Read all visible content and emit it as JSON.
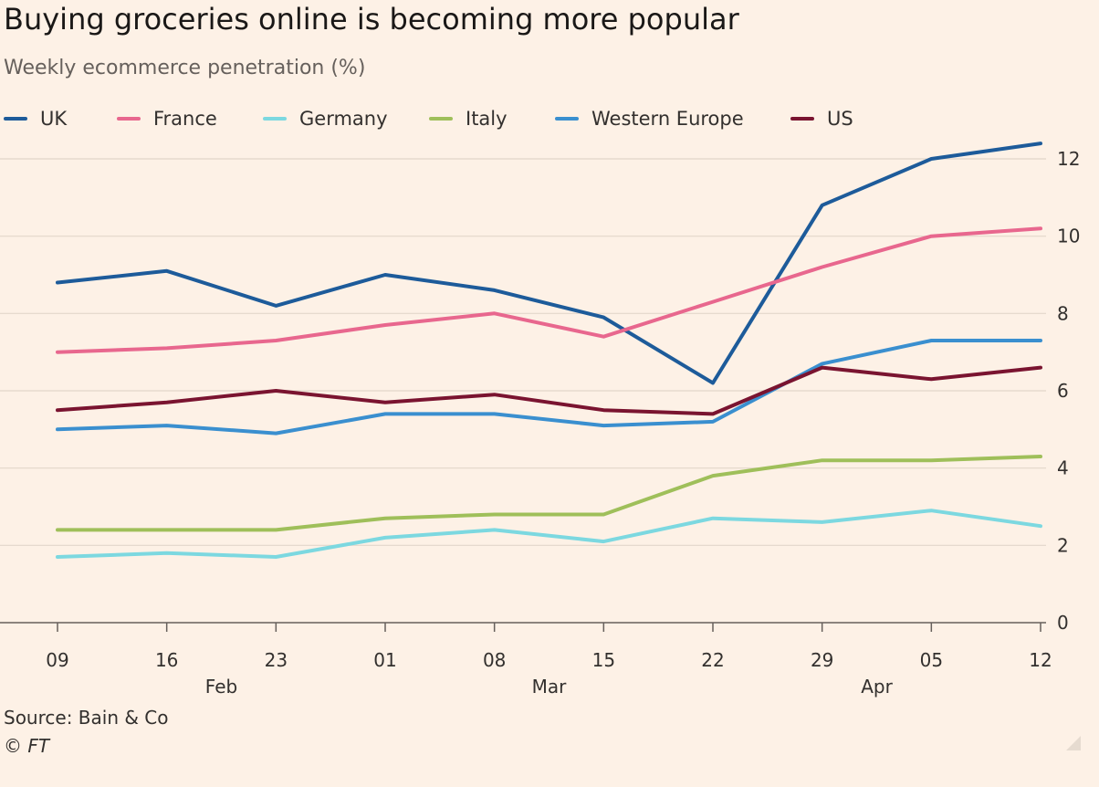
{
  "header": {
    "title": "Buying groceries online is becoming more popular",
    "subtitle": "Weekly ecommerce penetration (%)"
  },
  "footer": {
    "source": "Source: Bain & Co",
    "copyright": "© FT"
  },
  "chart_data": {
    "type": "line",
    "title": "Buying groceries online is becoming more popular",
    "subtitle": "Weekly ecommerce penetration (%)",
    "x": [
      "09",
      "16",
      "23",
      "01",
      "08",
      "15",
      "22",
      "29",
      "05",
      "12"
    ],
    "month_labels": [
      {
        "label": "Feb",
        "after_index": 1
      },
      {
        "label": "Mar",
        "after_index": 4
      },
      {
        "label": "Apr",
        "after_index": 7
      }
    ],
    "y_ticks": [
      "0",
      "2",
      "4",
      "6",
      "8",
      "10",
      "12"
    ],
    "ylim": [
      0,
      12
    ],
    "y_axis_side": "right",
    "grid": true,
    "legend_position": "top",
    "series": [
      {
        "name": "UK",
        "color": "#1d5b9a",
        "values": [
          8.8,
          9.1,
          8.2,
          9.0,
          8.6,
          7.9,
          6.2,
          10.8,
          12.0,
          12.4
        ]
      },
      {
        "name": "France",
        "color": "#e8678e",
        "values": [
          7.0,
          7.1,
          7.3,
          7.7,
          8.0,
          7.4,
          8.3,
          9.2,
          10.0,
          10.2
        ]
      },
      {
        "name": "Germany",
        "color": "#7cd8e0",
        "values": [
          1.7,
          1.8,
          1.7,
          2.2,
          2.4,
          2.1,
          2.7,
          2.6,
          2.9,
          2.5
        ]
      },
      {
        "name": "Italy",
        "color": "#9fbf5a",
        "values": [
          2.4,
          2.4,
          2.4,
          2.7,
          2.8,
          2.8,
          3.8,
          4.2,
          4.2,
          4.3
        ]
      },
      {
        "name": "Western Europe",
        "color": "#3a8fcf",
        "values": [
          5.0,
          5.1,
          4.9,
          5.4,
          5.4,
          5.1,
          5.2,
          6.7,
          7.3,
          7.3
        ]
      },
      {
        "name": "US",
        "color": "#7a1430",
        "values": [
          5.5,
          5.7,
          6.0,
          5.7,
          5.9,
          5.5,
          5.4,
          6.6,
          6.3,
          6.6
        ]
      }
    ]
  }
}
